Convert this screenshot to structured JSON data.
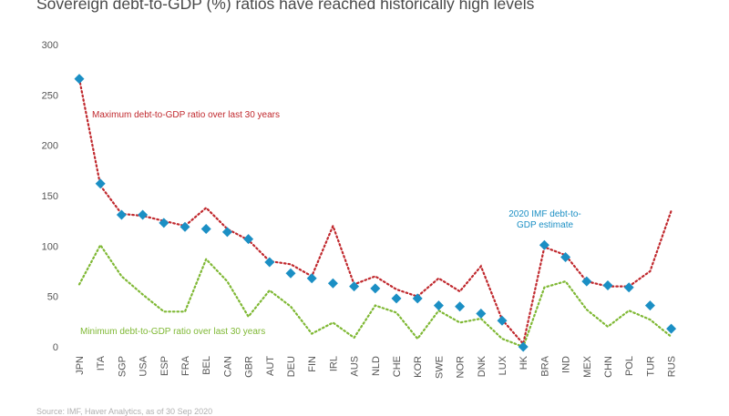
{
  "chart_data": {
    "type": "line",
    "title": "Sovereign debt-to-GDP (%) ratios have reached historically high levels",
    "xlabel": "",
    "ylabel": "",
    "ylim": [
      0,
      300
    ],
    "yticks": [
      0,
      50,
      100,
      150,
      200,
      250,
      300
    ],
    "grid": false,
    "categories": [
      "JPN",
      "ITA",
      "SGP",
      "USA",
      "ESP",
      "FRA",
      "BEL",
      "CAN",
      "GBR",
      "AUT",
      "DEU",
      "FIN",
      "IRL",
      "AUS",
      "NLD",
      "CHE",
      "KOR",
      "SWE",
      "NOR",
      "DNK",
      "LUX",
      "HK",
      "BRA",
      "IND",
      "MEX",
      "CHN",
      "POL",
      "TUR",
      "RUS"
    ],
    "series": [
      {
        "name": "Maximum debt-to-GDP ratio over last 30 years",
        "style": "dotted",
        "color": "#c0282d",
        "values": [
          266,
          160,
          132,
          130,
          125,
          120,
          138,
          117,
          106,
          85,
          82,
          70,
          120,
          62,
          70,
          57,
          50,
          68,
          55,
          80,
          27,
          3,
          99,
          91,
          65,
          60,
          60,
          75,
          135
        ]
      },
      {
        "name": "Minimum debt-to-GDP ratio over last 30 years",
        "style": "dotted",
        "color": "#7fb834",
        "values": [
          62,
          101,
          70,
          52,
          35,
          35,
          87,
          65,
          30,
          56,
          40,
          13,
          24,
          9,
          41,
          34,
          8,
          36,
          24,
          28,
          8,
          0,
          59,
          65,
          37,
          20,
          36,
          27,
          10
        ]
      },
      {
        "name": "2020 IMF debt-to-GDP estimate",
        "style": "diamond",
        "color": "#1b8fc4",
        "values": [
          266,
          162,
          131,
          131,
          123,
          119,
          117,
          114,
          107,
          84,
          73,
          68,
          63,
          60,
          58,
          48,
          48,
          41,
          40,
          33,
          26,
          0,
          101,
          89,
          65,
          61,
          59,
          41,
          18
        ]
      }
    ],
    "annotations": {
      "max_label": "Maximum debt-to-GDP ratio over last 30 years",
      "min_label": "Minimum debt-to-GDP ratio over last 30 years",
      "imf_line1": "2020 IMF debt-to-",
      "imf_line2": "GDP estimate"
    },
    "colors": {
      "max": "#c0282d",
      "min": "#7fb834",
      "imf": "#1b8fc4",
      "tick": "#555555"
    }
  },
  "footnote": "Source: IMF, Haver Analytics, as of 30 Sep 2020"
}
